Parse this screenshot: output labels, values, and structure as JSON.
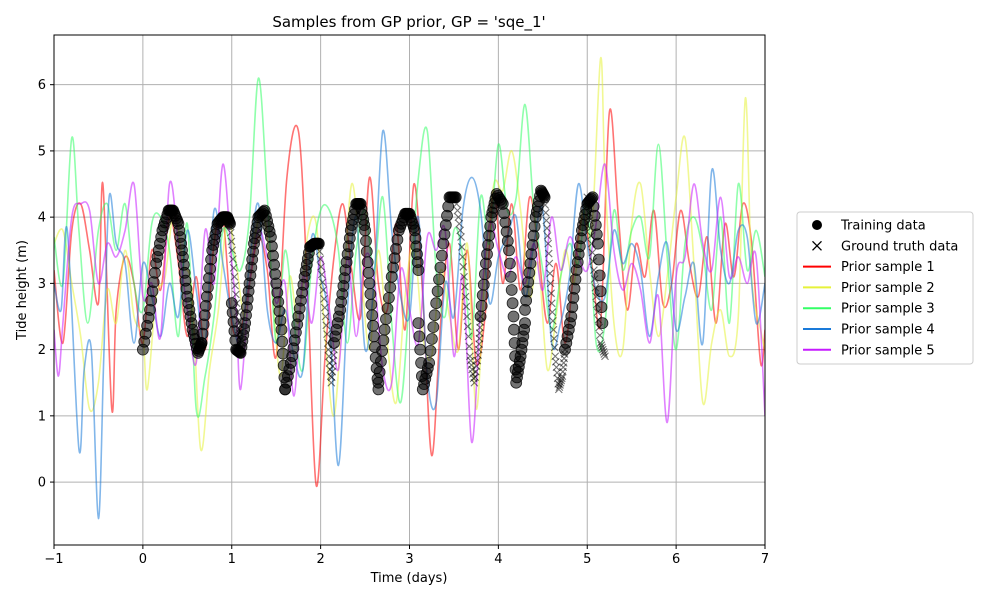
{
  "chart_data": {
    "type": "line",
    "title": "Samples from GP prior, GP = 'sqe_1'",
    "xlabel": "Time (days)",
    "ylabel": "Tide height (m)",
    "xlim": [
      -1,
      7
    ],
    "ylim": [
      -0.95,
      6.75
    ],
    "xticks": [
      -1,
      0,
      1,
      2,
      3,
      4,
      5,
      6,
      7
    ],
    "xtick_labels": [
      "−1",
      "0",
      "1",
      "2",
      "3",
      "4",
      "5",
      "6",
      "7"
    ],
    "yticks": [
      0,
      1,
      2,
      3,
      4,
      5,
      6
    ],
    "ytick_labels": [
      "0",
      "1",
      "2",
      "3",
      "4",
      "5",
      "6"
    ],
    "grid": true,
    "legend_position": "outside-right",
    "legend": [
      {
        "label": "Training data",
        "marker": "circle",
        "color": "#000000"
      },
      {
        "label": "Ground truth data",
        "marker": "x",
        "color": "#000000"
      },
      {
        "label": "Prior sample 1",
        "marker": "line",
        "color": "#ff0000"
      },
      {
        "label": "Prior sample 2",
        "marker": "line",
        "color": "#e6f23a"
      },
      {
        "label": "Prior sample 3",
        "marker": "line",
        "color": "#33ff66"
      },
      {
        "label": "Prior sample 4",
        "marker": "line",
        "color": "#1a7ad9"
      },
      {
        "label": "Prior sample 5",
        "marker": "line",
        "color": "#c61aff"
      }
    ],
    "training_segments": [
      {
        "x": [
          0.0,
          0.08,
          0.15,
          0.22,
          0.29,
          0.34,
          0.4,
          0.45,
          0.5,
          0.56,
          0.62,
          0.66
        ],
        "y": [
          2.0,
          2.6,
          3.3,
          3.8,
          4.1,
          4.1,
          3.9,
          3.4,
          2.8,
          2.3,
          1.95,
          2.1
        ]
      },
      {
        "x": [
          0.66,
          0.72,
          0.78,
          0.84,
          0.9,
          0.95,
          0.98
        ],
        "y": [
          2.1,
          2.8,
          3.5,
          3.9,
          4.0,
          4.0,
          3.9
        ]
      },
      {
        "x": [
          1.0,
          1.05,
          1.1,
          1.15,
          1.2,
          1.25,
          1.3,
          1.37,
          1.44,
          1.5,
          1.56,
          1.6
        ],
        "y": [
          2.7,
          2.0,
          1.95,
          2.4,
          3.0,
          3.6,
          4.0,
          4.1,
          3.7,
          3.0,
          2.3,
          1.4
        ]
      },
      {
        "x": [
          1.6,
          1.68,
          1.75,
          1.82,
          1.88,
          1.93,
          1.98
        ],
        "y": [
          1.4,
          1.9,
          2.5,
          3.1,
          3.55,
          3.6,
          3.6
        ]
      },
      {
        "x": [
          2.15,
          2.22,
          2.28,
          2.34,
          2.4,
          2.45,
          2.5,
          2.55,
          2.6,
          2.65
        ],
        "y": [
          2.1,
          2.6,
          3.2,
          3.8,
          4.2,
          4.2,
          3.8,
          3.0,
          2.2,
          1.4
        ]
      },
      {
        "x": [
          2.65,
          2.72,
          2.8,
          2.88,
          2.95,
          3.0,
          3.06,
          3.1
        ],
        "y": [
          1.5,
          2.3,
          3.1,
          3.8,
          4.05,
          4.05,
          3.8,
          3.2
        ]
      },
      {
        "x": [
          3.1,
          3.15,
          3.22,
          3.3,
          3.38,
          3.45,
          3.52
        ],
        "y": [
          2.4,
          1.4,
          1.8,
          2.7,
          3.6,
          4.3,
          4.3
        ]
      },
      {
        "x": [
          3.8,
          3.86,
          3.92,
          3.98,
          4.05,
          4.12,
          4.17,
          4.2,
          4.25,
          4.3
        ],
        "y": [
          2.5,
          3.3,
          4.0,
          4.35,
          4.2,
          3.5,
          2.5,
          1.5,
          1.9,
          2.4
        ]
      },
      {
        "x": [
          4.3,
          4.36,
          4.42,
          4.48,
          4.52
        ],
        "y": [
          2.6,
          3.3,
          4.0,
          4.4,
          4.3
        ]
      },
      {
        "x": [
          4.75,
          4.82,
          4.88,
          4.94,
          5.0,
          5.06,
          5.12,
          5.17
        ],
        "y": [
          2.0,
          2.5,
          3.2,
          3.8,
          4.2,
          4.3,
          3.6,
          2.4
        ]
      }
    ],
    "ground_truth_segments": [
      {
        "x": [
          0.98,
          1.03,
          1.08,
          1.12
        ],
        "y": [
          3.9,
          3.1,
          2.3,
          2.0
        ]
      },
      {
        "x": [
          1.98,
          2.03,
          2.08,
          2.12,
          2.15
        ],
        "y": [
          3.6,
          2.9,
          2.1,
          1.5,
          2.0
        ]
      },
      {
        "x": [
          3.52,
          3.58,
          3.63,
          3.68,
          3.73,
          3.78,
          3.8
        ],
        "y": [
          4.3,
          3.7,
          2.8,
          1.9,
          1.5,
          2.0,
          2.5
        ]
      },
      {
        "x": [
          4.52,
          4.56,
          4.6,
          4.64,
          4.68,
          4.72,
          4.75
        ],
        "y": [
          4.3,
          3.6,
          2.7,
          1.9,
          1.4,
          1.6,
          2.0
        ]
      },
      {
        "x": [
          5.0,
          5.05,
          5.1,
          5.15,
          5.2
        ],
        "y": [
          4.3,
          3.6,
          2.8,
          2.1,
          1.9
        ]
      }
    ],
    "series": [
      {
        "name": "Prior sample 1",
        "color": "#ff0000",
        "x": [
          -1.0,
          -0.9,
          -0.8,
          -0.7,
          -0.6,
          -0.5,
          -0.45,
          -0.35,
          -0.3,
          -0.2,
          -0.1,
          0.0,
          0.1,
          0.2,
          0.3,
          0.4,
          0.5,
          0.6,
          0.7,
          0.8,
          0.9,
          1.0,
          1.1,
          1.2,
          1.3,
          1.4,
          1.5,
          1.62,
          1.75,
          1.85,
          1.95,
          2.05,
          2.15,
          2.25,
          2.35,
          2.45,
          2.55,
          2.65,
          2.75,
          2.85,
          2.95,
          3.05,
          3.15,
          3.25,
          3.35,
          3.45,
          3.55,
          3.65,
          3.75,
          3.85,
          3.95,
          4.05,
          4.15,
          4.25,
          4.35,
          4.45,
          4.55,
          4.65,
          4.75,
          4.85,
          4.95,
          5.05,
          5.15,
          5.25,
          5.35,
          5.45,
          5.55,
          5.65,
          5.75,
          5.85,
          5.95,
          6.05,
          6.15,
          6.25,
          6.35,
          6.45,
          6.55,
          6.65,
          6.75,
          6.85,
          6.95,
          7.0
        ],
        "y": [
          3.2,
          2.1,
          3.8,
          4.2,
          3.5,
          2.7,
          4.5,
          1.1,
          2.6,
          3.4,
          3.0,
          2.1,
          3.5,
          2.9,
          4.0,
          3.3,
          2.2,
          3.1,
          2.0,
          3.6,
          4.0,
          2.4,
          2.3,
          3.0,
          3.7,
          3.2,
          1.9,
          4.6,
          5.3,
          3.0,
          -0.05,
          1.9,
          3.4,
          4.2,
          3.2,
          2.5,
          4.6,
          3.0,
          2.6,
          3.9,
          2.3,
          4.5,
          2.8,
          0.4,
          2.4,
          3.6,
          2.0,
          3.5,
          1.8,
          2.5,
          4.4,
          3.0,
          4.2,
          2.9,
          4.3,
          3.5,
          2.4,
          3.3,
          2.1,
          3.2,
          4.0,
          3.3,
          2.4,
          5.6,
          4.0,
          2.6,
          3.6,
          3.1,
          4.1,
          2.7,
          3.0,
          4.1,
          3.3,
          2.8,
          3.7,
          2.4,
          3.9,
          3.1,
          4.2,
          3.6,
          1.8,
          2.3
        ]
      },
      {
        "name": "Prior sample 2",
        "color": "#e6f23a",
        "x": [
          -1.0,
          -0.9,
          -0.8,
          -0.7,
          -0.6,
          -0.5,
          -0.4,
          -0.3,
          -0.2,
          -0.1,
          0.0,
          0.05,
          0.15,
          0.25,
          0.35,
          0.45,
          0.55,
          0.65,
          0.75,
          0.85,
          0.95,
          1.05,
          1.15,
          1.25,
          1.35,
          1.45,
          1.55,
          1.65,
          1.75,
          1.85,
          1.95,
          2.05,
          2.15,
          2.25,
          2.35,
          2.45,
          2.55,
          2.65,
          2.75,
          2.85,
          2.95,
          3.05,
          3.15,
          3.25,
          3.35,
          3.45,
          3.55,
          3.65,
          3.75,
          3.85,
          3.95,
          4.05,
          4.15,
          4.25,
          4.35,
          4.45,
          4.55,
          4.65,
          4.75,
          4.85,
          4.95,
          5.05,
          5.15,
          5.2,
          5.3,
          5.4,
          5.5,
          5.6,
          5.7,
          5.8,
          5.9,
          6.0,
          6.1,
          6.2,
          6.3,
          6.4,
          6.5,
          6.6,
          6.7,
          6.78,
          6.85,
          6.95,
          7.0
        ],
        "y": [
          3.6,
          3.8,
          3.0,
          2.2,
          1.1,
          1.5,
          2.9,
          2.4,
          3.5,
          2.5,
          2.2,
          1.4,
          2.8,
          3.1,
          4.1,
          3.3,
          2.9,
          0.5,
          1.7,
          2.6,
          4.0,
          3.3,
          2.5,
          3.6,
          4.1,
          3.0,
          1.6,
          3.1,
          2.4,
          3.7,
          3.9,
          2.2,
          1.0,
          2.7,
          4.5,
          3.3,
          2.0,
          3.5,
          2.1,
          1.2,
          2.8,
          3.6,
          2.2,
          1.9,
          3.2,
          2.5,
          2.0,
          3.6,
          1.1,
          3.2,
          4.5,
          4.4,
          5.0,
          4.1,
          2.8,
          3.3,
          1.7,
          2.5,
          3.5,
          3.0,
          4.1,
          3.8,
          6.4,
          4.6,
          2.4,
          2.0,
          3.9,
          4.5,
          3.2,
          2.2,
          3.1,
          4.3,
          5.2,
          3.3,
          1.2,
          2.1,
          2.6,
          1.9,
          2.5,
          5.8,
          3.1,
          2.3,
          2.0
        ]
      },
      {
        "name": "Prior sample 3",
        "color": "#33ff66",
        "x": [
          -1.0,
          -0.9,
          -0.8,
          -0.72,
          -0.62,
          -0.5,
          -0.4,
          -0.3,
          -0.2,
          -0.1,
          0.0,
          0.1,
          0.2,
          0.3,
          0.4,
          0.5,
          0.6,
          0.7,
          0.8,
          0.9,
          1.0,
          1.1,
          1.2,
          1.3,
          1.4,
          1.5,
          1.6,
          1.7,
          1.8,
          1.9,
          2.0,
          2.1,
          2.2,
          2.3,
          2.4,
          2.5,
          2.6,
          2.7,
          2.8,
          2.9,
          3.0,
          3.1,
          3.2,
          3.3,
          3.4,
          3.5,
          3.6,
          3.7,
          3.8,
          3.9,
          4.0,
          4.1,
          4.2,
          4.3,
          4.4,
          4.5,
          4.6,
          4.7,
          4.8,
          4.9,
          5.0,
          5.1,
          5.2,
          5.3,
          5.4,
          5.5,
          5.6,
          5.7,
          5.8,
          5.9,
          6.0,
          6.1,
          6.2,
          6.3,
          6.4,
          6.5,
          6.6,
          6.7,
          6.8,
          6.9,
          7.0
        ],
        "y": [
          3.7,
          3.0,
          5.2,
          3.8,
          2.4,
          3.8,
          4.2,
          3.5,
          4.2,
          3.0,
          2.6,
          3.9,
          4.0,
          3.5,
          2.2,
          3.9,
          1.1,
          1.6,
          2.5,
          3.8,
          3.5,
          3.2,
          4.0,
          6.1,
          4.3,
          2.1,
          3.5,
          2.4,
          1.7,
          3.3,
          4.1,
          4.1,
          3.5,
          2.1,
          3.5,
          4.1,
          3.2,
          4.3,
          2.4,
          1.2,
          2.8,
          4.6,
          5.3,
          3.2,
          2.5,
          3.8,
          3.4,
          2.2,
          4.3,
          3.6,
          5.1,
          4.1,
          4.3,
          5.7,
          4.1,
          3.2,
          2.3,
          3.1,
          3.6,
          3.3,
          4.2,
          2.1,
          2.4,
          4.1,
          3.2,
          3.8,
          4.0,
          3.4,
          5.1,
          3.4,
          2.0,
          3.6,
          4.0,
          3.5,
          2.6,
          4.0,
          2.4,
          4.5,
          3.2,
          3.8,
          3.1
        ]
      },
      {
        "name": "Prior sample 4",
        "color": "#1a7ad9",
        "x": [
          -1.0,
          -0.92,
          -0.85,
          -0.72,
          -0.66,
          -0.58,
          -0.5,
          -0.44,
          -0.38,
          -0.3,
          -0.2,
          -0.1,
          0.0,
          0.1,
          0.2,
          0.3,
          0.4,
          0.5,
          0.6,
          0.7,
          0.8,
          0.9,
          1.0,
          1.1,
          1.2,
          1.3,
          1.4,
          1.5,
          1.6,
          1.7,
          1.8,
          1.9,
          2.0,
          2.1,
          2.2,
          2.3,
          2.4,
          2.5,
          2.6,
          2.7,
          2.8,
          2.9,
          3.0,
          3.1,
          3.2,
          3.3,
          3.4,
          3.5,
          3.6,
          3.7,
          3.8,
          3.9,
          4.0,
          4.1,
          4.2,
          4.3,
          4.4,
          4.5,
          4.6,
          4.7,
          4.8,
          4.9,
          5.0,
          5.1,
          5.2,
          5.3,
          5.4,
          5.5,
          5.6,
          5.7,
          5.8,
          5.9,
          6.0,
          6.1,
          6.2,
          6.3,
          6.4,
          6.5,
          6.6,
          6.7,
          6.8,
          6.9,
          7.0
        ],
        "y": [
          3.0,
          2.6,
          3.8,
          0.5,
          1.7,
          2.0,
          -0.55,
          1.9,
          4.3,
          3.6,
          3.3,
          2.1,
          3.3,
          2.8,
          2.2,
          3.0,
          2.5,
          3.8,
          2.9,
          2.1,
          4.1,
          3.3,
          2.5,
          2.1,
          3.3,
          4.2,
          2.6,
          2.1,
          2.6,
          1.9,
          1.7,
          3.7,
          3.1,
          2.4,
          0.25,
          2.6,
          4.0,
          2.0,
          3.0,
          5.3,
          3.8,
          2.8,
          2.5,
          4.0,
          1.6,
          1.2,
          3.0,
          2.5,
          4.1,
          4.6,
          4.1,
          2.7,
          3.4,
          3.7,
          4.0,
          2.8,
          3.6,
          4.1,
          2.1,
          2.4,
          3.1,
          4.5,
          3.6,
          2.9,
          2.8,
          3.8,
          3.3,
          3.6,
          3.2,
          2.2,
          3.1,
          3.6,
          2.3,
          2.8,
          3.3,
          2.1,
          4.7,
          3.5,
          3.0,
          3.8,
          3.7,
          2.4,
          3.0
        ]
      },
      {
        "name": "Prior sample 5",
        "color": "#c61aff",
        "x": [
          -1.0,
          -0.95,
          -0.9,
          -0.8,
          -0.7,
          -0.6,
          -0.5,
          -0.4,
          -0.3,
          -0.2,
          -0.1,
          0.0,
          0.1,
          0.2,
          0.3,
          0.4,
          0.5,
          0.6,
          0.7,
          0.8,
          0.9,
          1.0,
          1.05,
          1.1,
          1.2,
          1.3,
          1.4,
          1.5,
          1.6,
          1.7,
          1.8,
          1.9,
          2.0,
          2.1,
          2.2,
          2.3,
          2.4,
          2.5,
          2.6,
          2.7,
          2.8,
          2.9,
          3.0,
          3.1,
          3.2,
          3.3,
          3.4,
          3.5,
          3.6,
          3.7,
          3.8,
          3.9,
          4.0,
          4.1,
          4.2,
          4.3,
          4.4,
          4.5,
          4.6,
          4.7,
          4.8,
          4.9,
          5.0,
          5.1,
          5.2,
          5.3,
          5.4,
          5.5,
          5.6,
          5.7,
          5.8,
          5.9,
          6.0,
          6.1,
          6.2,
          6.3,
          6.4,
          6.5,
          6.6,
          6.7,
          6.8,
          6.9,
          7.0
        ],
        "y": [
          2.3,
          1.6,
          2.4,
          4.0,
          4.2,
          4.1,
          3.0,
          3.6,
          3.4,
          3.8,
          4.5,
          2.8,
          3.0,
          2.2,
          4.5,
          3.6,
          2.6,
          1.8,
          3.8,
          3.0,
          4.8,
          3.3,
          2.6,
          1.4,
          3.0,
          3.8,
          3.4,
          2.7,
          3.0,
          1.3,
          3.1,
          2.4,
          3.4,
          2.6,
          1.7,
          3.4,
          2.2,
          3.4,
          3.1,
          1.7,
          1.5,
          3.2,
          2.6,
          2.1,
          3.7,
          3.5,
          3.8,
          1.9,
          3.1,
          0.6,
          2.6,
          3.9,
          3.5,
          3.1,
          3.4,
          3.0,
          3.6,
          2.9,
          4.0,
          3.2,
          3.7,
          3.4,
          3.2,
          3.9,
          4.8,
          3.5,
          2.9,
          3.3,
          2.9,
          2.1,
          2.8,
          0.9,
          3.1,
          3.4,
          4.5,
          3.6,
          3.2,
          4.3,
          3.1,
          3.4,
          3.0,
          3.4,
          1.0
        ]
      }
    ]
  }
}
